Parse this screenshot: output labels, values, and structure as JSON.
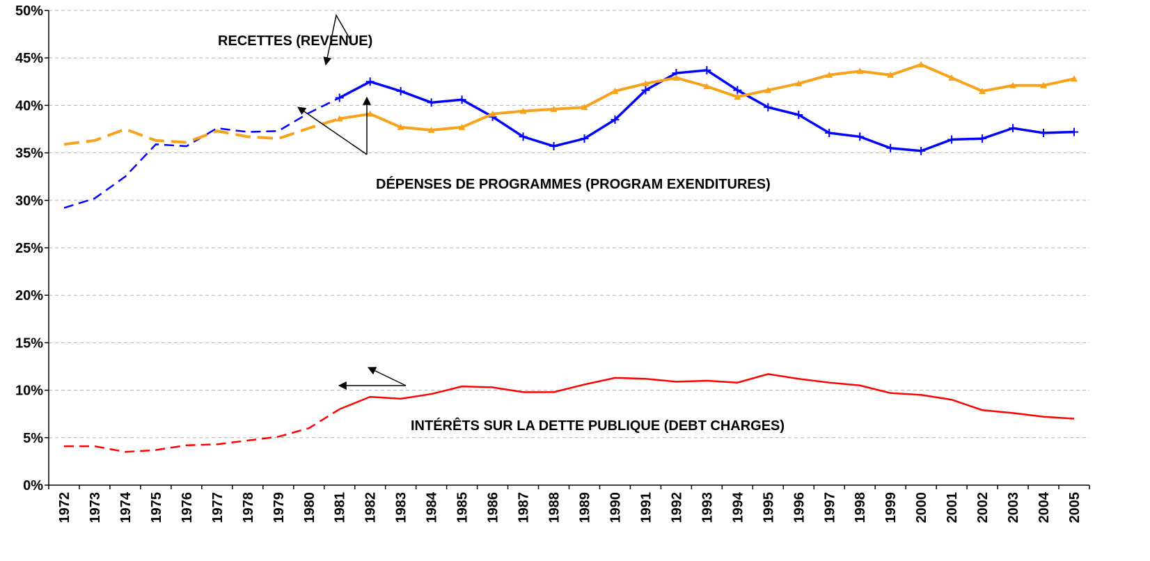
{
  "chart_data": {
    "type": "line",
    "categories": [
      "1972",
      "1973",
      "1974",
      "1975",
      "1976",
      "1977",
      "1978",
      "1979",
      "1980",
      "1981",
      "1982",
      "1983",
      "1984",
      "1985",
      "1986",
      "1987",
      "1988",
      "1989",
      "1990",
      "1991",
      "1992",
      "1993",
      "1994",
      "1995",
      "1996",
      "1997",
      "1998",
      "1999",
      "2000",
      "2001",
      "2002",
      "2003",
      "2004",
      "2005"
    ],
    "series": [
      {
        "name": "RECETTES (REVENUE)",
        "color": "#0000ff",
        "values": [
          29.2,
          30.2,
          32.5,
          35.9,
          35.7,
          37.6,
          37.2,
          37.3,
          39.2,
          40.8,
          42.5,
          41.5,
          40.3,
          40.6,
          38.8,
          36.7,
          35.7,
          36.5,
          38.5,
          41.6,
          43.4,
          43.7,
          41.6,
          39.8,
          39.0,
          37.1,
          36.7,
          35.5,
          35.2,
          36.4,
          36.5,
          37.6,
          37.1,
          37.2
        ]
      },
      {
        "name": "DÉPENSES DE PROGRAMMES (PROGRAM EXENDITURES)",
        "color": "#f7a21b",
        "values": [
          35.9,
          36.3,
          37.5,
          36.3,
          36.1,
          37.3,
          36.7,
          36.5,
          37.6,
          38.6,
          39.1,
          37.7,
          37.4,
          37.7,
          39.1,
          39.4,
          39.6,
          39.8,
          41.5,
          42.3,
          42.9,
          42.0,
          40.9,
          41.6,
          42.3,
          43.2,
          43.6,
          43.2,
          44.3,
          42.9,
          41.5,
          42.1,
          42.1,
          42.8
        ]
      },
      {
        "name": "INTÉRÊTS SUR LA DETTE PUBLIQUE (DEBT CHARGES)",
        "color": "#ff0000",
        "values": [
          4.1,
          4.1,
          3.5,
          3.7,
          4.2,
          4.3,
          4.7,
          5.1,
          6.0,
          8.0,
          9.3,
          9.1,
          9.6,
          10.4,
          10.3,
          9.8,
          9.8,
          10.6,
          11.3,
          11.2,
          10.9,
          11.0,
          10.8,
          11.7,
          11.2,
          10.8,
          10.5,
          9.7,
          9.5,
          9.0,
          7.9,
          7.6,
          7.2,
          7.0
        ]
      }
    ],
    "ylim": [
      0,
      50
    ],
    "yticks": [
      {
        "value": 0,
        "label": "0%"
      },
      {
        "value": 5,
        "label": "5%"
      },
      {
        "value": 10,
        "label": "10%"
      },
      {
        "value": 15,
        "label": "15%"
      },
      {
        "value": 20,
        "label": "20%"
      },
      {
        "value": 25,
        "label": "25%"
      },
      {
        "value": 30,
        "label": "30%"
      },
      {
        "value": 35,
        "label": "35%"
      },
      {
        "value": 40,
        "label": "40%"
      },
      {
        "value": 45,
        "label": "45%"
      },
      {
        "value": 50,
        "label": "50%"
      }
    ],
    "grid": true
  }
}
